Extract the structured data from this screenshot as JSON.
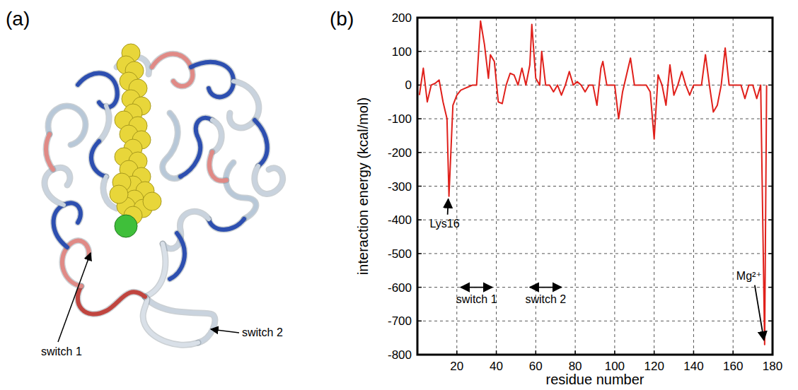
{
  "figure": {
    "panel_labels": [
      "(a)",
      "(b)"
    ],
    "structure_labels": [
      "switch 1",
      "switch 2"
    ]
  },
  "chart_data": {
    "type": "line",
    "xlabel": "residue number",
    "ylabel": "interaction energy (kcal/mol)",
    "color": "#e0201b",
    "x": [
      1,
      3,
      5,
      7,
      9,
      11,
      13,
      15,
      16,
      18,
      20,
      22,
      24,
      26,
      28,
      30,
      32,
      34,
      36,
      37,
      39,
      41,
      43,
      45,
      47,
      49,
      51,
      53,
      55,
      57,
      58,
      60,
      62,
      63,
      65,
      67,
      69,
      71,
      73,
      75,
      77,
      79,
      81,
      83,
      85,
      87,
      89,
      91,
      93,
      94,
      96,
      98,
      100,
      102,
      104,
      106,
      108,
      110,
      112,
      114,
      116,
      118,
      120,
      122,
      124,
      126,
      128,
      130,
      132,
      134,
      136,
      138,
      140,
      142,
      144,
      146,
      148,
      150,
      152,
      154,
      156,
      158,
      160,
      162,
      164,
      166,
      168,
      170,
      172,
      174,
      176,
      177
    ],
    "values": [
      -30,
      50,
      -50,
      0,
      5,
      15,
      -50,
      -100,
      -330,
      -60,
      -30,
      -15,
      -10,
      -5,
      0,
      0,
      190,
      120,
      20,
      90,
      70,
      -50,
      -55,
      0,
      35,
      30,
      0,
      50,
      0,
      60,
      180,
      20,
      0,
      100,
      0,
      0,
      -20,
      0,
      -30,
      0,
      40,
      0,
      10,
      0,
      -20,
      0,
      0,
      -60,
      50,
      70,
      0,
      0,
      0,
      -100,
      -20,
      30,
      80,
      0,
      0,
      0,
      0,
      -20,
      -160,
      30,
      0,
      -60,
      60,
      -30,
      0,
      40,
      0,
      -30,
      0,
      0,
      0,
      90,
      0,
      -80,
      -60,
      0,
      110,
      0,
      0,
      0,
      0,
      -40,
      0,
      0,
      -40,
      0,
      -770,
      0
    ],
    "xlim": [
      0,
      180
    ],
    "ylim": [
      -800,
      200
    ],
    "xticks": [
      20,
      40,
      60,
      80,
      100,
      120,
      140,
      160,
      180
    ],
    "yticks": [
      -800,
      -700,
      -600,
      -500,
      -400,
      -300,
      -200,
      -100,
      0,
      100,
      200
    ],
    "grid": true,
    "annotations": [
      {
        "text": "Lys16",
        "x": 16,
        "y": -330
      },
      {
        "text": "switch 1",
        "x": [
          22,
          38
        ],
        "y": -600
      },
      {
        "text": "switch 2",
        "x": [
          57,
          73
        ],
        "y": -600
      },
      {
        "text": "Mg²⁺",
        "x": 176,
        "y": -770
      }
    ]
  }
}
